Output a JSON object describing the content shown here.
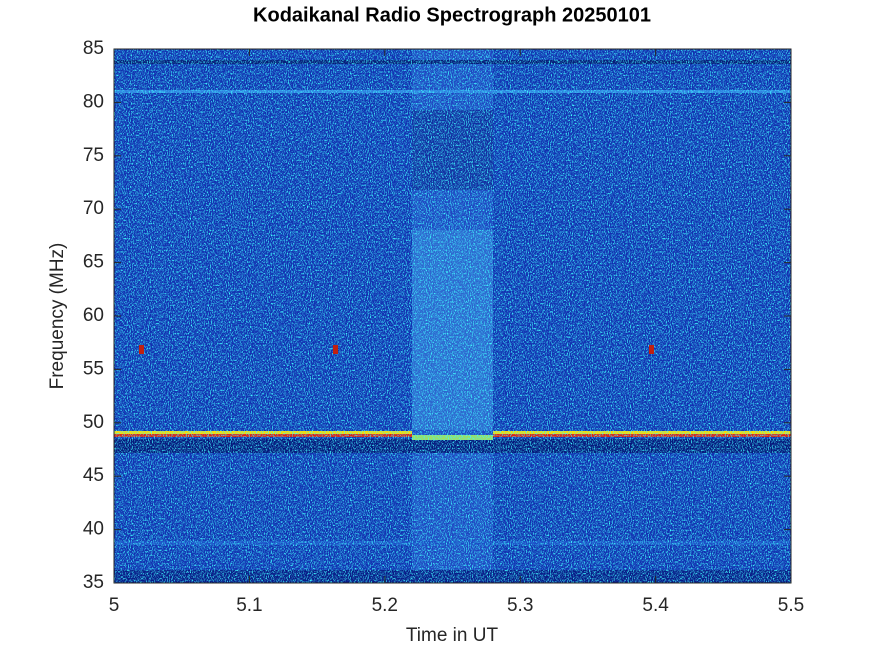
{
  "chart_data": {
    "type": "spectrogram",
    "title": "Kodaikanal Radio Spectrograph  20250101",
    "xlabel": "Time in UT",
    "ylabel": "Frequency (MHz)",
    "xlim": [
      5,
      5.5
    ],
    "ylim": [
      35,
      85
    ],
    "xticks": [
      5,
      5.1,
      5.2,
      5.3,
      5.4,
      5.5
    ],
    "yticks": [
      35,
      40,
      45,
      50,
      55,
      60,
      65,
      70,
      75,
      80,
      85
    ]
  }
}
